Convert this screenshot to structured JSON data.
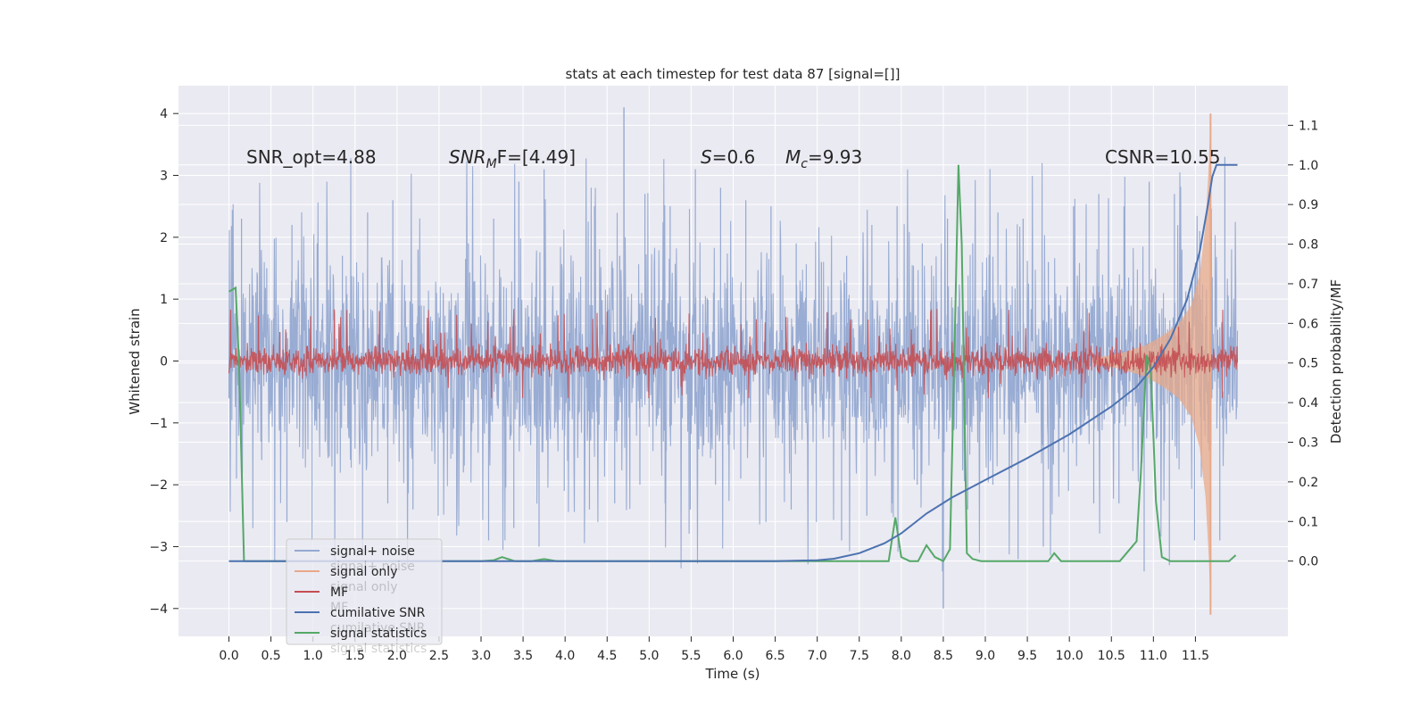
{
  "chart_data": {
    "type": "line",
    "title": "stats at each timestep for test data 87 [signal=[]]",
    "xlabel": "Time (s)",
    "ylabel": "Whitened strain",
    "y2label": "Detection probability/MF",
    "xlim": [
      -0.6,
      12.6
    ],
    "ylim": [
      -4.45,
      4.45
    ],
    "y2lim": [
      -0.19,
      1.2
    ],
    "grid": true,
    "legend_position": "lower-left",
    "x_ticks": [
      "0.0",
      "0.5",
      "1.0",
      "1.5",
      "2.0",
      "2.5",
      "3.0",
      "3.5",
      "4.0",
      "4.5",
      "5.0",
      "5.5",
      "6.0",
      "6.5",
      "7.0",
      "7.5",
      "8.0",
      "8.5",
      "9.0",
      "9.5",
      "10.0",
      "10.5",
      "11.0",
      "11.5"
    ],
    "y_ticks": [
      "4",
      "3",
      "2",
      "1",
      "0",
      "−1",
      "−2",
      "−3",
      "−4"
    ],
    "y2_ticks": [
      "1.1",
      "1.0",
      "0.9",
      "0.8",
      "0.7",
      "0.6",
      "0.5",
      "0.4",
      "0.3",
      "0.2",
      "0.1",
      "0.0"
    ],
    "annotations": {
      "snr_opt": "SNR_opt=4.88",
      "snr_mf_main": "SNR",
      "snr_mf_sub": "M",
      "snr_mf_rest": "F=[4.49]",
      "s_main": "S",
      "s_rest": "=0.6",
      "mc_main": "M",
      "mc_sub": "c",
      "mc_rest": "=9.93",
      "csnr": "CSNR=10.55"
    },
    "legend": [
      "signal+ noise",
      "signal only",
      "MF",
      "cumilative SNR",
      "signal statistics"
    ],
    "legend_ghost": [
      "signal+ noise",
      "signal only",
      "MF",
      "cumilative SNR",
      "signal statistics"
    ],
    "colors": {
      "signal_noise": "#95a9d1",
      "signal_only": "#e8a98a",
      "mf": "#c44e52",
      "cumulative_snr": "#4c72b0",
      "signal_statistics": "#55a868",
      "axes_bg": "#eaeaf2",
      "grid": "#ffffff"
    },
    "series": [
      {
        "name": "signal+ noise",
        "axis": "left",
        "style": "noise",
        "t_range": [
          0.0,
          12.0
        ],
        "band_1sigma": 1.3,
        "peak_range": [
          -4.0,
          4.1
        ],
        "envelope_y": [
          2.3,
          1.5,
          2.2,
          1.9,
          1.7,
          2.4,
          2.6,
          1.8,
          1.1,
          1.9,
          2.3,
          2.9,
          3.1,
          1.1,
          2.5,
          1.7,
          2.7,
          2.5,
          3.1,
          2.8,
          2.6,
          2.5,
          1.9,
          1.6,
          1.7,
          2.2,
          2.5,
          1.9,
          2.3,
          1.9,
          2.4,
          2.3,
          1.6,
          2.5,
          2.7,
          2.5,
          2.9,
          2.7,
          2.1,
          3.3
        ],
        "envelope_y_neg": [
          -1.9,
          -1.6,
          -2.6,
          -2.9,
          -1.5,
          -3.1,
          -2.3,
          -2.4,
          -2.5,
          -1.8,
          -2.9,
          -2.7,
          -3.0,
          -2.1,
          -2.4,
          -2.3,
          -2.0,
          -2.3,
          -2.4,
          -2.0,
          -1.9,
          -2.6,
          -2.4,
          -2.6,
          -2.9,
          -2.5,
          -2.3,
          -2.0,
          -3.4,
          -2.4,
          -2.0,
          -3.2,
          -3.0,
          -2.1,
          -2.3,
          -2.3,
          -3.4,
          -3.3,
          -2.9,
          -2.9
        ]
      },
      {
        "name": "MF",
        "axis": "left",
        "style": "noise",
        "t_range": [
          0.0,
          12.0
        ],
        "band_1sigma": 0.2,
        "peak_range": [
          -0.6,
          1.0
        ]
      },
      {
        "name": "signal only",
        "axis": "left",
        "style": "chirp",
        "t": [
          10.3,
          10.6,
          10.9,
          11.1,
          11.3,
          11.45,
          11.55,
          11.62,
          11.66,
          11.68
        ],
        "amplitude": [
          0.05,
          0.12,
          0.25,
          0.4,
          0.6,
          0.9,
          1.4,
          2.2,
          3.2,
          4.0
        ],
        "end_min": -4.1
      },
      {
        "name": "cumilative SNR",
        "axis": "right",
        "t": [
          0.0,
          1.0,
          2.0,
          3.0,
          4.0,
          5.0,
          6.0,
          6.5,
          7.0,
          7.2,
          7.5,
          7.8,
          8.0,
          8.3,
          8.6,
          9.0,
          9.5,
          10.0,
          10.5,
          10.8,
          11.0,
          11.2,
          11.4,
          11.55,
          11.65,
          11.7,
          11.75,
          12.0
        ],
        "y": [
          0.0,
          0.0,
          0.0,
          0.0,
          0.0,
          0.0,
          0.0,
          0.0,
          0.002,
          0.006,
          0.02,
          0.045,
          0.07,
          0.12,
          0.16,
          0.205,
          0.26,
          0.32,
          0.39,
          0.44,
          0.49,
          0.56,
          0.66,
          0.78,
          0.9,
          0.97,
          1.0,
          1.0
        ]
      },
      {
        "name": "signal statistics",
        "axis": "right",
        "t": [
          0.0,
          0.08,
          0.12,
          0.18,
          0.3,
          1.0,
          2.0,
          3.0,
          3.15,
          3.25,
          3.4,
          3.6,
          3.75,
          3.9,
          4.2,
          5.0,
          6.0,
          7.0,
          7.5,
          7.85,
          7.93,
          8.0,
          8.1,
          8.2,
          8.3,
          8.4,
          8.5,
          8.58,
          8.64,
          8.68,
          8.72,
          8.78,
          8.85,
          8.95,
          9.1,
          9.5,
          9.75,
          9.82,
          9.9,
          10.0,
          10.3,
          10.6,
          10.8,
          10.85,
          10.92,
          10.97,
          11.03,
          11.1,
          11.2,
          11.5,
          11.8,
          11.9,
          11.98
        ],
        "y": [
          0.68,
          0.69,
          0.5,
          0.0,
          0.0,
          0.0,
          0.0,
          0.0,
          0.002,
          0.01,
          0.0,
          0.0,
          0.005,
          0.0,
          0.0,
          0.0,
          0.0,
          0.0,
          0.0,
          0.0,
          0.11,
          0.01,
          0.0,
          0.0,
          0.04,
          0.01,
          0.0,
          0.03,
          0.6,
          1.0,
          0.8,
          0.02,
          0.005,
          0.0,
          0.0,
          0.0,
          0.0,
          0.02,
          0.0,
          0.0,
          0.0,
          0.0,
          0.05,
          0.22,
          0.52,
          0.48,
          0.15,
          0.01,
          0.0,
          0.0,
          0.0,
          0.0,
          0.015
        ]
      }
    ]
  }
}
